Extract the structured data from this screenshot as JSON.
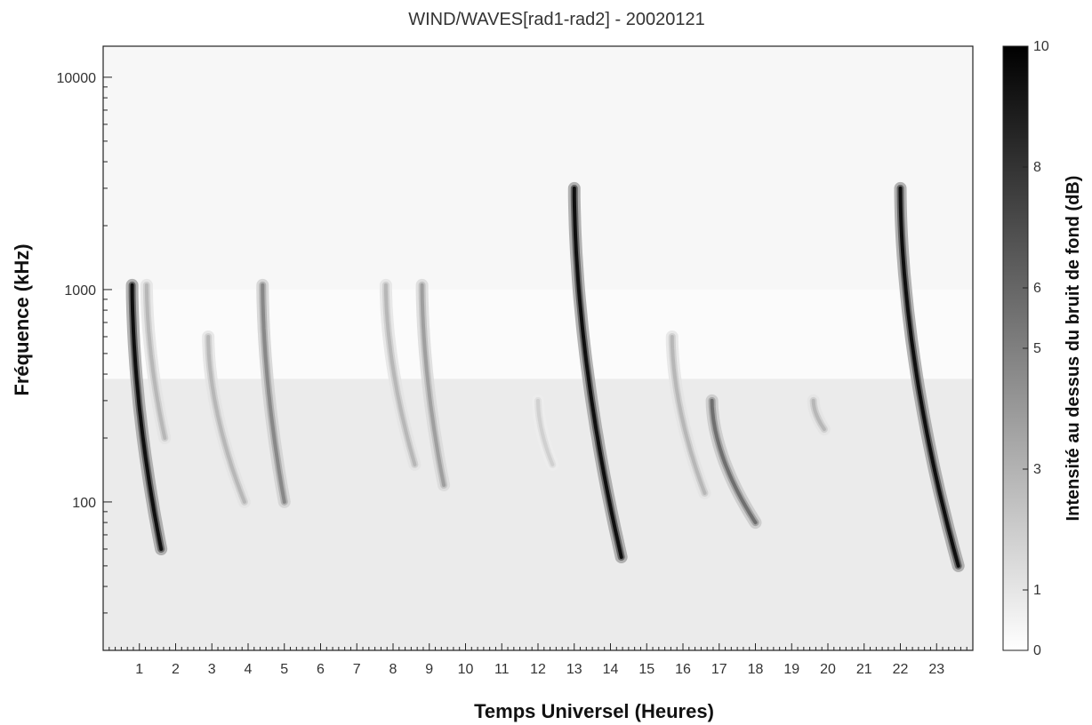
{
  "chart_data": {
    "type": "heatmap",
    "title": "WIND/WAVES[rad1-rad2] - 20020121",
    "xlabel": "Temps Universel (Heures)",
    "ylabel": "Fréquence (kHz)",
    "xlim": [
      0,
      24
    ],
    "ylim": [
      20,
      14000
    ],
    "yscale": "log",
    "x_ticks": [
      "1",
      "2",
      "3",
      "4",
      "5",
      "6",
      "7",
      "8",
      "9",
      "10",
      "11",
      "12",
      "13",
      "14",
      "15",
      "16",
      "17",
      "18",
      "19",
      "20",
      "21",
      "22",
      "23"
    ],
    "y_ticks": [
      "100",
      "1000",
      "10000"
    ],
    "colorbar": {
      "label": "Intensité au dessus du bruit de fond (dB)",
      "ticks": [
        "0",
        "1",
        "3",
        "5",
        "6",
        "8",
        "10"
      ],
      "range": [
        0,
        10
      ],
      "colors": [
        "#ffffff",
        "#000000"
      ]
    },
    "bursts": [
      {
        "start_hour": 0.8,
        "top_khz": 1050,
        "end_hour": 1.6,
        "end_khz": 60,
        "peak_db": 10
      },
      {
        "start_hour": 1.2,
        "top_khz": 1050,
        "end_hour": 1.7,
        "end_khz": 200,
        "peak_db": 3
      },
      {
        "start_hour": 2.9,
        "top_khz": 600,
        "end_hour": 3.9,
        "end_khz": 100,
        "peak_db": 3
      },
      {
        "start_hour": 4.4,
        "top_khz": 1050,
        "end_hour": 5.0,
        "end_khz": 100,
        "peak_db": 5
      },
      {
        "start_hour": 7.8,
        "top_khz": 1050,
        "end_hour": 8.6,
        "end_khz": 150,
        "peak_db": 3
      },
      {
        "start_hour": 8.8,
        "top_khz": 1050,
        "end_hour": 9.4,
        "end_khz": 120,
        "peak_db": 4
      },
      {
        "start_hour": 12.0,
        "top_khz": 300,
        "end_hour": 12.4,
        "end_khz": 150,
        "peak_db": 2
      },
      {
        "start_hour": 13.0,
        "top_khz": 3000,
        "end_hour": 14.3,
        "end_khz": 55,
        "peak_db": 10
      },
      {
        "start_hour": 15.7,
        "top_khz": 600,
        "end_hour": 16.6,
        "end_khz": 110,
        "peak_db": 3
      },
      {
        "start_hour": 16.8,
        "top_khz": 300,
        "end_hour": 18.0,
        "end_khz": 80,
        "peak_db": 6
      },
      {
        "start_hour": 19.6,
        "top_khz": 300,
        "end_hour": 19.9,
        "end_khz": 220,
        "peak_db": 3
      },
      {
        "start_hour": 22.0,
        "top_khz": 3000,
        "end_hour": 23.6,
        "end_khz": 50,
        "peak_db": 10
      }
    ]
  }
}
